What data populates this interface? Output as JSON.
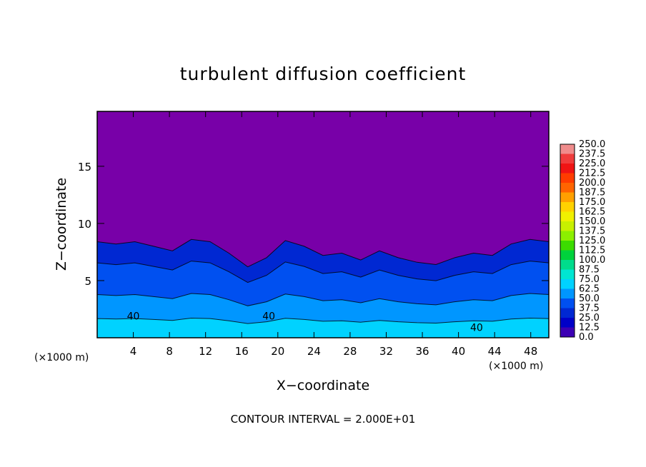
{
  "chart_data": {
    "type": "heatmap",
    "title": "turbulent diffusion coefficient",
    "xlabel": "X−coordinate",
    "ylabel": "Z−coordinate",
    "x_unit_left": "(×1000 m)",
    "x_unit_right": "(×1000 m)",
    "xlim": [
      0,
      50
    ],
    "ylim": [
      0,
      19.8
    ],
    "x_ticks": [
      4,
      8,
      12,
      16,
      20,
      24,
      28,
      32,
      36,
      40,
      44,
      48
    ],
    "y_ticks": [
      5,
      10,
      15
    ],
    "colorbar": {
      "levels": [
        "250.0",
        "237.5",
        "225.0",
        "212.5",
        "200.0",
        "187.5",
        "175.0",
        "162.5",
        "150.0",
        "137.5",
        "125.0",
        "112.5",
        "100.0",
        "87.5",
        "75.0",
        "62.5",
        "50.0",
        "37.5",
        "25.0",
        "12.5",
        "0.0"
      ],
      "colors": [
        "#f08c8c",
        "#f03c3c",
        "#f01414",
        "#ff3c00",
        "#ff6400",
        "#ffa000",
        "#ffd200",
        "#f0f000",
        "#c8f000",
        "#8cf000",
        "#3cdc00",
        "#00d23c",
        "#00dc8c",
        "#00e6d2",
        "#00d2ff",
        "#0096ff",
        "#0050f0",
        "#0028d2",
        "#0000c8",
        "#3c00b4"
      ]
    },
    "background_color": "#7800a8",
    "turbulent_layer_top_km": [
      8.4,
      8.2,
      8.4,
      8.0,
      7.6,
      8.6,
      8.4,
      7.4,
      6.2,
      7.0,
      8.5,
      8.0,
      7.2,
      7.4,
      6.8,
      7.6,
      7.0,
      6.6,
      6.4,
      7.0,
      7.4,
      7.2,
      8.2,
      8.6,
      8.4
    ],
    "annotations": [
      "40",
      "40",
      "40"
    ],
    "footer": "CONTOUR INTERVAL = 2.000E+01"
  }
}
